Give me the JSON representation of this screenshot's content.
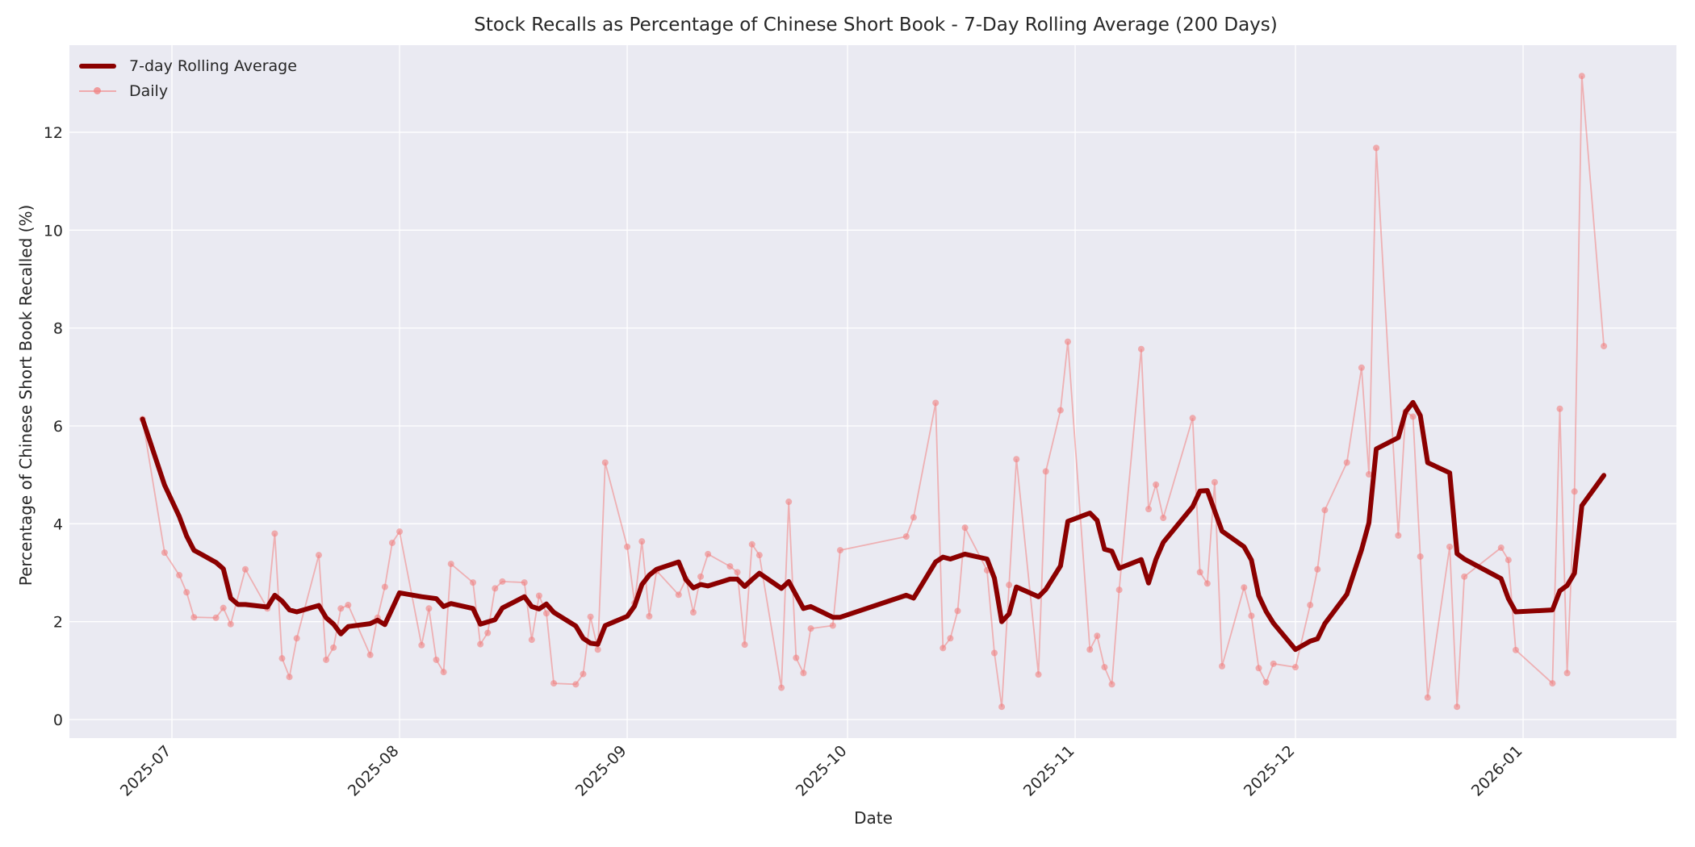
{
  "chart_data": {
    "type": "line",
    "title": "Stock Recalls as Percentage of Chinese Short Book - 7-Day Rolling Average (200 Days)",
    "xlabel": "Date",
    "ylabel": "Percentage of Chinese Short Book Recalled (%)",
    "ylim": [
      -0.45,
      13.7
    ],
    "yticks": [
      0,
      2,
      4,
      6,
      8,
      10,
      12
    ],
    "xticks": [
      "2025-07",
      "2025-08",
      "2025-09",
      "2025-10",
      "2025-11",
      "2025-12",
      "2026-01"
    ],
    "xtick_dates": [
      "2025-07-01",
      "2025-08-01",
      "2025-09-01",
      "2025-10-01",
      "2025-11-01",
      "2025-12-01",
      "2026-01-01"
    ],
    "grid": true,
    "legend_position": "upper left",
    "colors": {
      "rolling": "#8b0000",
      "daily": "#f08080",
      "plot_bg": "#eaeaf2",
      "grid": "#ffffff"
    },
    "series": [
      {
        "name": "7-day Rolling Average",
        "x": [
          "2025-06-27",
          "2025-06-30",
          "2025-07-02",
          "2025-07-03",
          "2025-07-04",
          "2025-07-07",
          "2025-07-08",
          "2025-07-09",
          "2025-07-10",
          "2025-07-11",
          "2025-07-14",
          "2025-07-15",
          "2025-07-16",
          "2025-07-17",
          "2025-07-18",
          "2025-07-21",
          "2025-07-22",
          "2025-07-23",
          "2025-07-24",
          "2025-07-25",
          "2025-07-28",
          "2025-07-29",
          "2025-07-30",
          "2025-08-01",
          "2025-08-04",
          "2025-08-06",
          "2025-08-07",
          "2025-08-08",
          "2025-08-11",
          "2025-08-12",
          "2025-08-14",
          "2025-08-15",
          "2025-08-18",
          "2025-08-19",
          "2025-08-20",
          "2025-08-21",
          "2025-08-22",
          "2025-08-25",
          "2025-08-26",
          "2025-08-27",
          "2025-08-28",
          "2025-08-29",
          "2025-09-01",
          "2025-09-02",
          "2025-09-03",
          "2025-09-04",
          "2025-09-05",
          "2025-09-08",
          "2025-09-09",
          "2025-09-10",
          "2025-09-11",
          "2025-09-12",
          "2025-09-15",
          "2025-09-16",
          "2025-09-17",
          "2025-09-18",
          "2025-09-19",
          "2025-09-22",
          "2025-09-23",
          "2025-09-25",
          "2025-09-26",
          "2025-09-29",
          "2025-09-30",
          "2025-10-09",
          "2025-10-10",
          "2025-10-13",
          "2025-10-14",
          "2025-10-15",
          "2025-10-17",
          "2025-10-20",
          "2025-10-21",
          "2025-10-22",
          "2025-10-23",
          "2025-10-24",
          "2025-10-27",
          "2025-10-28",
          "2025-10-30",
          "2025-10-31",
          "2025-11-03",
          "2025-11-04",
          "2025-11-05",
          "2025-11-06",
          "2025-11-07",
          "2025-11-10",
          "2025-11-11",
          "2025-11-12",
          "2025-11-13",
          "2025-11-17",
          "2025-11-18",
          "2025-11-19",
          "2025-11-21",
          "2025-11-24",
          "2025-11-25",
          "2025-11-26",
          "2025-11-27",
          "2025-11-28",
          "2025-12-01",
          "2025-12-03",
          "2025-12-04",
          "2025-12-05",
          "2025-12-08",
          "2025-12-10",
          "2025-12-11",
          "2025-12-12",
          "2025-12-15",
          "2025-12-16",
          "2025-12-17",
          "2025-12-18",
          "2025-12-19",
          "2025-12-22",
          "2025-12-23",
          "2025-12-24",
          "2025-12-29",
          "2025-12-30",
          "2025-12-31",
          "2026-01-05",
          "2026-01-06",
          "2026-01-07",
          "2026-01-08",
          "2026-01-09",
          "2026-01-12"
        ],
        "values": [
          6.14,
          4.79,
          4.15,
          3.75,
          3.46,
          3.21,
          3.08,
          2.48,
          2.35,
          2.35,
          2.3,
          2.54,
          2.42,
          2.24,
          2.2,
          2.33,
          2.08,
          1.95,
          1.75,
          1.9,
          1.96,
          2.03,
          1.94,
          2.59,
          2.51,
          2.47,
          2.31,
          2.37,
          2.27,
          1.95,
          2.04,
          2.28,
          2.51,
          2.31,
          2.26,
          2.36,
          2.19,
          1.91,
          1.66,
          1.56,
          1.54,
          1.92,
          2.11,
          2.32,
          2.76,
          2.95,
          3.07,
          3.22,
          2.86,
          2.69,
          2.76,
          2.73,
          2.87,
          2.87,
          2.72,
          2.86,
          2.99,
          2.68,
          2.82,
          2.27,
          2.31,
          2.09,
          2.09,
          2.54,
          2.48,
          3.22,
          3.32,
          3.28,
          3.38,
          3.28,
          2.89,
          2.0,
          2.16,
          2.71,
          2.51,
          2.66,
          3.14,
          4.05,
          4.22,
          4.07,
          3.48,
          3.44,
          3.09,
          3.27,
          2.79,
          3.27,
          3.62,
          4.35,
          4.67,
          4.68,
          3.85,
          3.53,
          3.26,
          2.53,
          2.21,
          1.97,
          1.43,
          1.6,
          1.65,
          1.96,
          2.56,
          3.47,
          4.02,
          5.53,
          5.76,
          6.29,
          6.48,
          6.21,
          5.25,
          5.04,
          3.39,
          3.28,
          2.88,
          2.47,
          2.2,
          2.24,
          2.63,
          2.74,
          2.99,
          4.37,
          4.99
        ]
      },
      {
        "name": "Daily",
        "x": [
          "2025-06-27",
          "2025-06-30",
          "2025-07-02",
          "2025-07-03",
          "2025-07-04",
          "2025-07-07",
          "2025-07-08",
          "2025-07-09",
          "2025-07-11",
          "2025-07-14",
          "2025-07-15",
          "2025-07-16",
          "2025-07-17",
          "2025-07-18",
          "2025-07-21",
          "2025-07-22",
          "2025-07-23",
          "2025-07-24",
          "2025-07-25",
          "2025-07-28",
          "2025-07-29",
          "2025-07-30",
          "2025-07-31",
          "2025-08-01",
          "2025-08-04",
          "2025-08-05",
          "2025-08-06",
          "2025-08-07",
          "2025-08-08",
          "2025-08-11",
          "2025-08-12",
          "2025-08-13",
          "2025-08-14",
          "2025-08-15",
          "2025-08-18",
          "2025-08-19",
          "2025-08-20",
          "2025-08-21",
          "2025-08-22",
          "2025-08-25",
          "2025-08-26",
          "2025-08-27",
          "2025-08-28",
          "2025-08-29",
          "2025-09-01",
          "2025-09-02",
          "2025-09-03",
          "2025-09-04",
          "2025-09-05",
          "2025-09-08",
          "2025-09-09",
          "2025-09-10",
          "2025-09-11",
          "2025-09-12",
          "2025-09-15",
          "2025-09-16",
          "2025-09-17",
          "2025-09-18",
          "2025-09-19",
          "2025-09-22",
          "2025-09-23",
          "2025-09-24",
          "2025-09-25",
          "2025-09-26",
          "2025-09-29",
          "2025-09-30",
          "2025-10-09",
          "2025-10-10",
          "2025-10-13",
          "2025-10-14",
          "2025-10-15",
          "2025-10-16",
          "2025-10-17",
          "2025-10-20",
          "2025-10-21",
          "2025-10-22",
          "2025-10-23",
          "2025-10-24",
          "2025-10-27",
          "2025-10-28",
          "2025-10-30",
          "2025-10-31",
          "2025-11-03",
          "2025-11-04",
          "2025-11-05",
          "2025-11-06",
          "2025-11-07",
          "2025-11-10",
          "2025-11-11",
          "2025-11-12",
          "2025-11-13",
          "2025-11-17",
          "2025-11-18",
          "2025-11-19",
          "2025-11-20",
          "2025-11-21",
          "2025-11-24",
          "2025-11-25",
          "2025-11-26",
          "2025-11-27",
          "2025-11-28",
          "2025-12-01",
          "2025-12-03",
          "2025-12-04",
          "2025-12-05",
          "2025-12-08",
          "2025-12-10",
          "2025-12-11",
          "2025-12-12",
          "2025-12-15",
          "2025-12-16",
          "2025-12-17",
          "2025-12-18",
          "2025-12-19",
          "2025-12-22",
          "2025-12-23",
          "2025-12-24",
          "2025-12-29",
          "2025-12-30",
          "2025-12-31",
          "2026-01-05",
          "2026-01-06",
          "2026-01-07",
          "2026-01-08",
          "2026-01-09",
          "2026-01-12"
        ],
        "values": [
          6.14,
          3.41,
          2.95,
          2.6,
          2.09,
          2.08,
          2.28,
          1.95,
          3.07,
          2.27,
          3.8,
          1.25,
          0.87,
          1.66,
          3.36,
          1.22,
          1.47,
          2.27,
          2.34,
          1.32,
          2.08,
          2.71,
          3.61,
          3.84,
          1.52,
          2.27,
          1.22,
          0.97,
          3.18,
          2.8,
          1.54,
          1.77,
          2.68,
          2.82,
          2.8,
          1.63,
          2.53,
          2.17,
          0.74,
          0.72,
          0.93,
          2.1,
          1.43,
          5.25,
          3.53,
          2.38,
          3.64,
          2.11,
          3.04,
          2.55,
          2.87,
          2.19,
          2.92,
          3.38,
          3.13,
          3.01,
          1.53,
          3.58,
          3.36,
          0.65,
          4.45,
          1.26,
          0.95,
          1.86,
          1.92,
          3.46,
          3.74,
          4.13,
          6.47,
          1.46,
          1.66,
          2.22,
          3.92,
          3.05,
          1.36,
          0.26,
          2.75,
          5.32,
          0.92,
          5.07,
          6.32,
          7.72,
          1.43,
          1.71,
          1.07,
          0.72,
          2.65,
          7.57,
          4.3,
          4.8,
          4.12,
          6.16,
          3.01,
          2.78,
          4.85,
          1.09,
          2.7,
          2.12,
          1.05,
          0.76,
          1.14,
          1.07,
          2.34,
          3.07,
          4.28,
          5.25,
          7.19,
          5.01,
          11.68,
          3.76,
          6.29,
          6.19,
          3.33,
          0.45,
          3.53,
          0.26,
          2.92,
          3.51,
          3.26,
          1.42,
          0.74,
          6.35,
          0.95,
          4.66,
          13.15,
          7.63
        ]
      }
    ]
  },
  "legend": {
    "items": [
      {
        "label": "7-day Rolling Average"
      },
      {
        "label": "Daily"
      }
    ]
  }
}
